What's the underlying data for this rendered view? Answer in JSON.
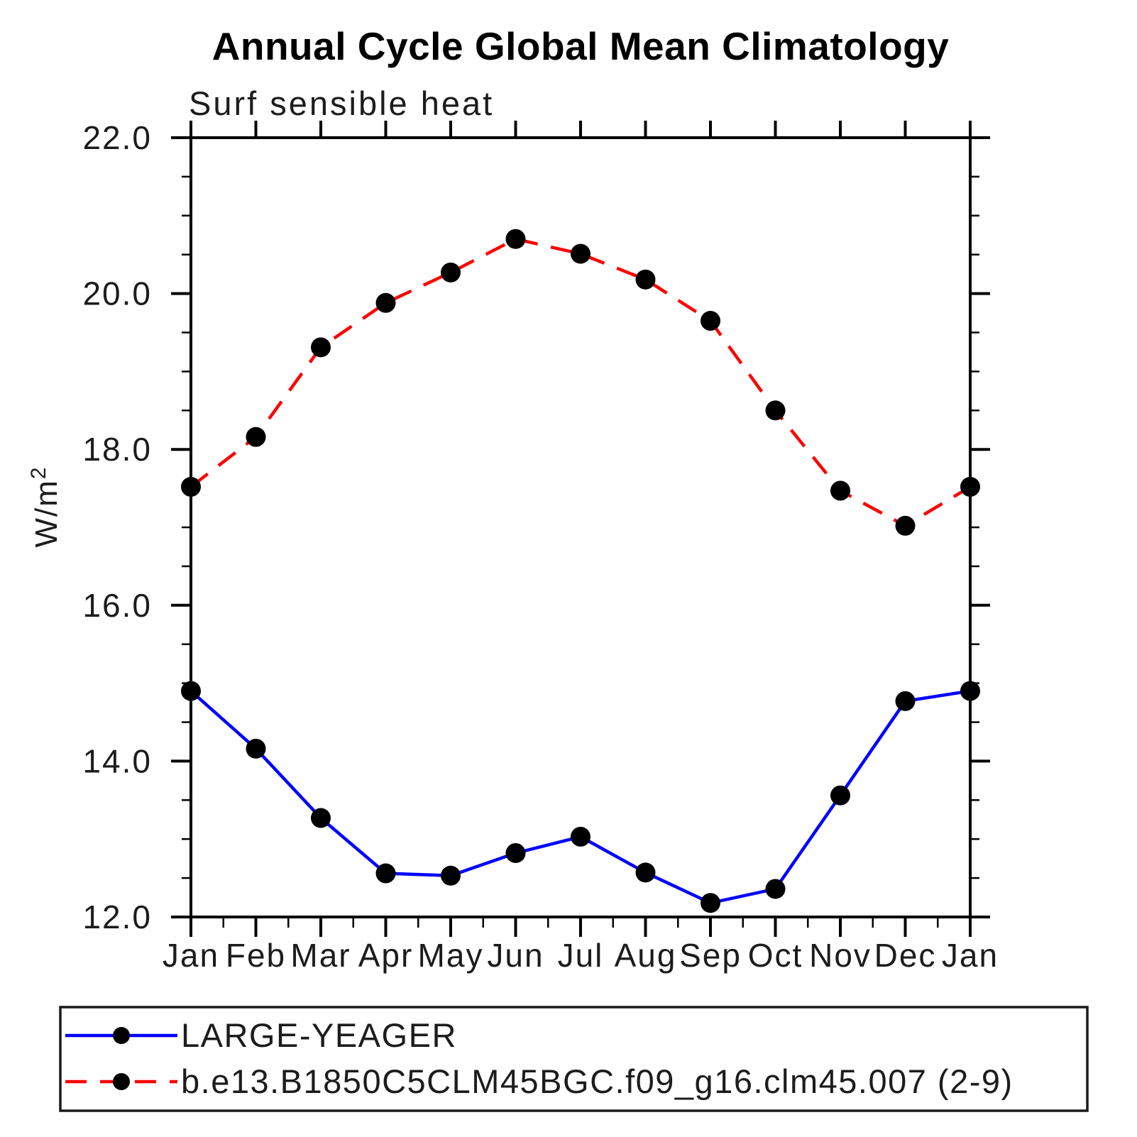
{
  "title": "Annual Cycle Global Mean Climatology",
  "chart_data": {
    "type": "line",
    "title": "Annual Cycle Global Mean Climatology",
    "subtitle": "Surf sensible heat",
    "ylabel": {
      "base": "W/m",
      "exponent": "2"
    },
    "x_categories": [
      "Jan",
      "Feb",
      "Mar",
      "Apr",
      "May",
      "Jun",
      "Jul",
      "Aug",
      "Sep",
      "Oct",
      "Nov",
      "Dec",
      "Jan"
    ],
    "ylim": [
      12.0,
      22.0
    ],
    "yticks_major": {
      "values": [
        12,
        14,
        16,
        18,
        20,
        22
      ],
      "labels": [
        "12.0",
        "14.0",
        "16.0",
        "18.0",
        "20.0",
        "22.0"
      ]
    },
    "ytick_minor_step": 0.5,
    "x_minor_ticks": "half-month-bottom-only",
    "grid": "off",
    "legend_position": "bottom-left-box",
    "axis_color": "#000000",
    "series": [
      {
        "name": "LARGE-YEAGER",
        "line_style": "solid",
        "color": "#0000ff",
        "marker": "filled-circle",
        "marker_color": "#000000",
        "values": [
          14.9,
          14.16,
          13.27,
          12.56,
          12.53,
          12.82,
          13.03,
          12.57,
          12.18,
          12.36,
          13.56,
          14.77,
          14.9
        ]
      },
      {
        "name": "b.e13.B1850C5CLM45BGC.f09_g16.clm45.007 (2-9)",
        "line_style": "dashed",
        "color": "#ff0000",
        "marker": "filled-circle",
        "marker_color": "#000000",
        "values": [
          17.52,
          18.16,
          19.31,
          19.88,
          20.27,
          20.7,
          20.51,
          20.18,
          19.65,
          18.5,
          17.47,
          17.02,
          17.52
        ]
      }
    ]
  }
}
